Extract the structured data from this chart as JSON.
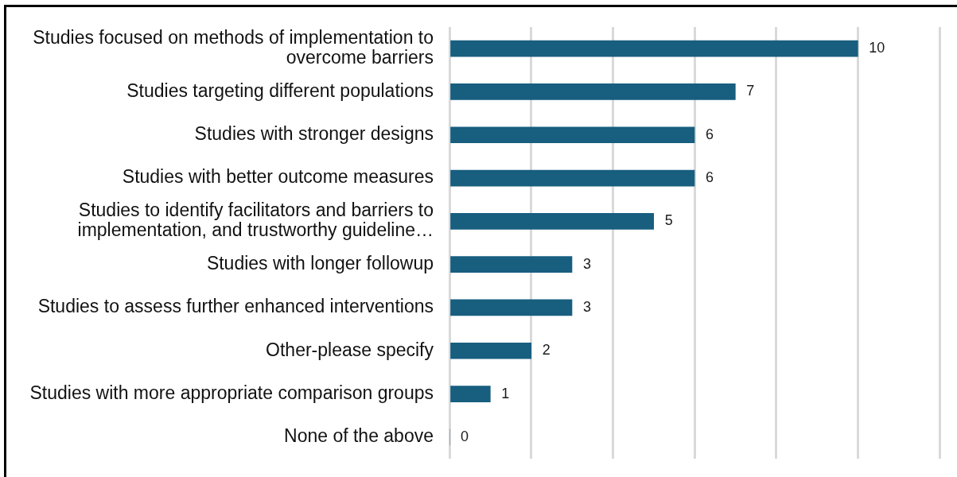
{
  "chart_data": {
    "type": "bar",
    "orientation": "horizontal",
    "categories": [
      "Studies focused on methods of implementation to overcome barriers",
      "Studies targeting different populations",
      "Studies with stronger designs",
      "Studies with better outcome measures",
      "Studies to identify facilitators and barriers to implementation, and trustworthy guideline…",
      "Studies with longer followup",
      "Studies to assess further enhanced interventions",
      "Other-please specify",
      "Studies with more appropriate comparison groups",
      "None of the above"
    ],
    "values": [
      10,
      7,
      6,
      6,
      5,
      3,
      3,
      2,
      1,
      0
    ],
    "color": "#175e7f",
    "xlim": [
      0,
      12
    ],
    "xticks": [
      {
        "value": 0,
        "label": null
      },
      {
        "value": 2,
        "label": null
      },
      {
        "value": 4,
        "label": null
      },
      {
        "value": 6,
        "label": null
      },
      {
        "value": 8,
        "label": null
      },
      {
        "value": 10,
        "label": null
      },
      {
        "value": 12,
        "label": null
      }
    ],
    "grid": "x",
    "tick_labels": "y",
    "data_labels": true
  }
}
